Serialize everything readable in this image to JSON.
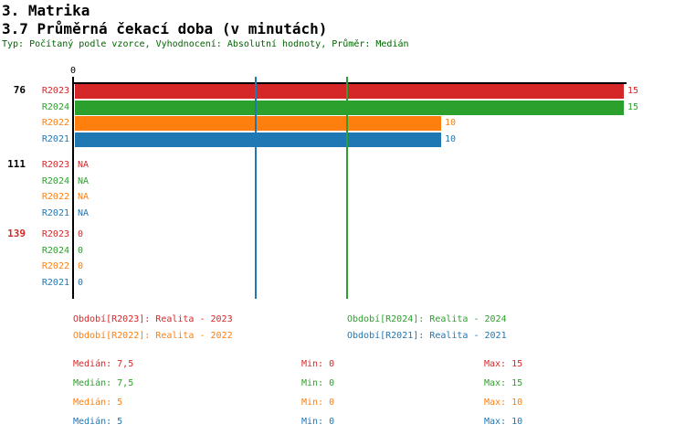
{
  "header": {
    "title": "3. Matrika",
    "subtitle": "3.7 Průměrná čekací doba (v minutách)",
    "meta": "Typ: Počítaný podle vzorce, Vyhodnocení: Absolutní hodnoty, Průměr: Medián"
  },
  "colors": {
    "meta_text": "#006400",
    "axis": "#000000",
    "series": {
      "R2023": "#d62728",
      "R2024": "#2ca02c",
      "R2022": "#ff7f0e",
      "R2021": "#1f77b4"
    }
  },
  "chart_data": {
    "type": "bar",
    "orientation": "horizontal",
    "title": "3.7 Průměrná čekací doba (v minutách)",
    "x_axis": {
      "min": 0,
      "max": 15,
      "tick_labels": [
        "0"
      ],
      "grid": false
    },
    "series_order": [
      "R2023",
      "R2024",
      "R2022",
      "R2021"
    ],
    "groups": [
      {
        "label": "76",
        "label_color": "#000000",
        "values": [
          15,
          15,
          10,
          10
        ],
        "display": [
          "15",
          "15",
          "10",
          "10"
        ]
      },
      {
        "label": "111",
        "label_color": "#000000",
        "values": [
          null,
          null,
          null,
          null
        ],
        "display": [
          "NA",
          "NA",
          "NA",
          "NA"
        ]
      },
      {
        "label": "139",
        "label_color": "#d62728",
        "values": [
          0,
          0,
          0,
          0
        ],
        "display": [
          "0",
          "0",
          "0",
          "0"
        ]
      }
    ],
    "median_lines": [
      {
        "series": "R2021",
        "value": 5,
        "color": "#1f77b4"
      },
      {
        "series": "R2024",
        "value": 7.5,
        "color": "#2ca02c"
      }
    ],
    "legend": [
      {
        "series": "R2023",
        "label": "Období[R2023]: Realita - 2023"
      },
      {
        "series": "R2024",
        "label": "Období[R2024]: Realita - 2024"
      },
      {
        "series": "R2022",
        "label": "Období[R2022]: Realita - 2022"
      },
      {
        "series": "R2021",
        "label": "Období[R2021]: Realita - 2021"
      }
    ],
    "stats": [
      {
        "series": "R2023",
        "median": "Medián: 7,5",
        "min": "Min: 0",
        "max": "Max: 15"
      },
      {
        "series": "R2024",
        "median": "Medián: 7,5",
        "min": "Min: 0",
        "max": "Max: 15"
      },
      {
        "series": "R2022",
        "median": "Medián: 5",
        "min": "Min: 0",
        "max": "Max: 10"
      },
      {
        "series": "R2021",
        "median": "Medián: 5",
        "min": "Min: 0",
        "max": "Max: 10"
      }
    ]
  }
}
